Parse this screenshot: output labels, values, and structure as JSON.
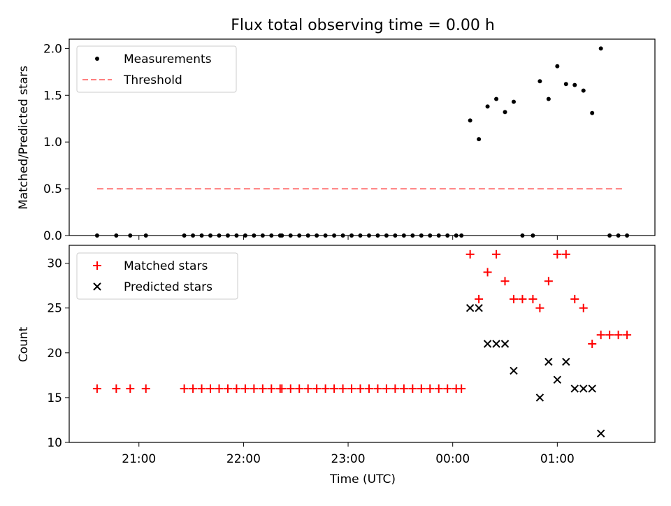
{
  "title": "Flux total observing time = 0.00 h",
  "xlabel": "Time (UTC)",
  "x_ticks": [
    "21:00",
    "22:00",
    "23:00",
    "00:00",
    "01:00"
  ],
  "colors": {
    "measurement": "#000000",
    "threshold": "#ff7f7f",
    "matched": "#ff0000",
    "predicted": "#000000"
  },
  "chart_data": [
    {
      "type": "scatter",
      "ylabel": "Matched/Predicted stars",
      "ylim": [
        0,
        2.1
      ],
      "y_ticks": [
        "0.0",
        "0.5",
        "1.0",
        "1.5",
        "2.0"
      ],
      "xlim": [
        "20:20",
        "01:56"
      ],
      "legend": {
        "position": "upper left",
        "entries": [
          "Measurements",
          "Threshold"
        ]
      },
      "threshold": {
        "name": "Threshold",
        "value": 0.5,
        "x_range": [
          "20:36",
          "01:39"
        ]
      },
      "series": [
        {
          "name": "Measurements",
          "points": [
            [
              "20:36",
              0
            ],
            [
              "20:47",
              0
            ],
            [
              "20:55",
              0
            ],
            [
              "21:04",
              0
            ],
            [
              "21:26",
              0
            ],
            [
              "21:31",
              0
            ],
            [
              "21:36",
              0
            ],
            [
              "21:41",
              0
            ],
            [
              "21:46",
              0
            ],
            [
              "21:51",
              0
            ],
            [
              "21:56",
              0
            ],
            [
              "22:01",
              0
            ],
            [
              "22:06",
              0
            ],
            [
              "22:11",
              0
            ],
            [
              "22:16",
              0
            ],
            [
              "22:21",
              0
            ],
            [
              "22:22",
              0
            ],
            [
              "22:27",
              0
            ],
            [
              "22:32",
              0
            ],
            [
              "22:37",
              0
            ],
            [
              "22:42",
              0
            ],
            [
              "22:47",
              0
            ],
            [
              "22:52",
              0
            ],
            [
              "22:57",
              0
            ],
            [
              "23:02",
              0
            ],
            [
              "23:07",
              0
            ],
            [
              "23:12",
              0
            ],
            [
              "23:17",
              0
            ],
            [
              "23:22",
              0
            ],
            [
              "23:27",
              0
            ],
            [
              "23:32",
              0
            ],
            [
              "23:37",
              0
            ],
            [
              "23:42",
              0
            ],
            [
              "23:47",
              0
            ],
            [
              "23:52",
              0
            ],
            [
              "23:57",
              0
            ],
            [
              "00:02",
              0
            ],
            [
              "00:05",
              0
            ],
            [
              "00:10",
              1.23
            ],
            [
              "00:15",
              1.03
            ],
            [
              "00:20",
              1.38
            ],
            [
              "00:25",
              1.46
            ],
            [
              "00:30",
              1.32
            ],
            [
              "00:35",
              1.43
            ],
            [
              "00:40",
              0
            ],
            [
              "00:46",
              0
            ],
            [
              "00:50",
              1.65
            ],
            [
              "00:55",
              1.46
            ],
            [
              "01:00",
              1.81
            ],
            [
              "01:05",
              1.62
            ],
            [
              "01:10",
              1.61
            ],
            [
              "01:15",
              1.55
            ],
            [
              "01:20",
              1.31
            ],
            [
              "01:25",
              2.0
            ],
            [
              "01:30",
              0
            ],
            [
              "01:35",
              0
            ],
            [
              "01:40",
              0
            ]
          ]
        }
      ]
    },
    {
      "type": "scatter",
      "ylabel": "Count",
      "ylim": [
        10,
        32
      ],
      "y_ticks": [
        "10",
        "15",
        "20",
        "25",
        "30"
      ],
      "xlim": [
        "20:20",
        "01:56"
      ],
      "legend": {
        "position": "upper left",
        "entries": [
          "Matched stars",
          "Predicted stars"
        ]
      },
      "series": [
        {
          "name": "Matched stars",
          "marker": "plus",
          "points": [
            [
              "20:36",
              16
            ],
            [
              "20:47",
              16
            ],
            [
              "20:55",
              16
            ],
            [
              "21:04",
              16
            ],
            [
              "21:26",
              16
            ],
            [
              "21:31",
              16
            ],
            [
              "21:36",
              16
            ],
            [
              "21:41",
              16
            ],
            [
              "21:46",
              16
            ],
            [
              "21:51",
              16
            ],
            [
              "21:56",
              16
            ],
            [
              "22:01",
              16
            ],
            [
              "22:06",
              16
            ],
            [
              "22:11",
              16
            ],
            [
              "22:16",
              16
            ],
            [
              "22:21",
              16
            ],
            [
              "22:22",
              16
            ],
            [
              "22:27",
              16
            ],
            [
              "22:32",
              16
            ],
            [
              "22:37",
              16
            ],
            [
              "22:42",
              16
            ],
            [
              "22:47",
              16
            ],
            [
              "22:52",
              16
            ],
            [
              "22:57",
              16
            ],
            [
              "23:02",
              16
            ],
            [
              "23:07",
              16
            ],
            [
              "23:12",
              16
            ],
            [
              "23:17",
              16
            ],
            [
              "23:22",
              16
            ],
            [
              "23:27",
              16
            ],
            [
              "23:32",
              16
            ],
            [
              "23:37",
              16
            ],
            [
              "23:42",
              16
            ],
            [
              "23:47",
              16
            ],
            [
              "23:52",
              16
            ],
            [
              "23:57",
              16
            ],
            [
              "00:02",
              16
            ],
            [
              "00:05",
              16
            ],
            [
              "00:10",
              31
            ],
            [
              "00:15",
              26
            ],
            [
              "00:20",
              29
            ],
            [
              "00:25",
              31
            ],
            [
              "00:30",
              28
            ],
            [
              "00:35",
              26
            ],
            [
              "00:40",
              26
            ],
            [
              "00:46",
              26
            ],
            [
              "00:50",
              25
            ],
            [
              "00:55",
              28
            ],
            [
              "01:00",
              31
            ],
            [
              "01:05",
              31
            ],
            [
              "01:10",
              26
            ],
            [
              "01:15",
              25
            ],
            [
              "01:20",
              21
            ],
            [
              "01:25",
              22
            ],
            [
              "01:30",
              22
            ],
            [
              "01:35",
              22
            ],
            [
              "01:40",
              22
            ]
          ]
        },
        {
          "name": "Predicted stars",
          "marker": "x",
          "points": [
            [
              "00:10",
              25
            ],
            [
              "00:15",
              25
            ],
            [
              "00:20",
              21
            ],
            [
              "00:25",
              21
            ],
            [
              "00:30",
              21
            ],
            [
              "00:35",
              18
            ],
            [
              "00:50",
              15
            ],
            [
              "00:55",
              19
            ],
            [
              "01:00",
              17
            ],
            [
              "01:05",
              19
            ],
            [
              "01:10",
              16
            ],
            [
              "01:15",
              16
            ],
            [
              "01:20",
              16
            ],
            [
              "01:25",
              11
            ]
          ]
        }
      ]
    }
  ]
}
